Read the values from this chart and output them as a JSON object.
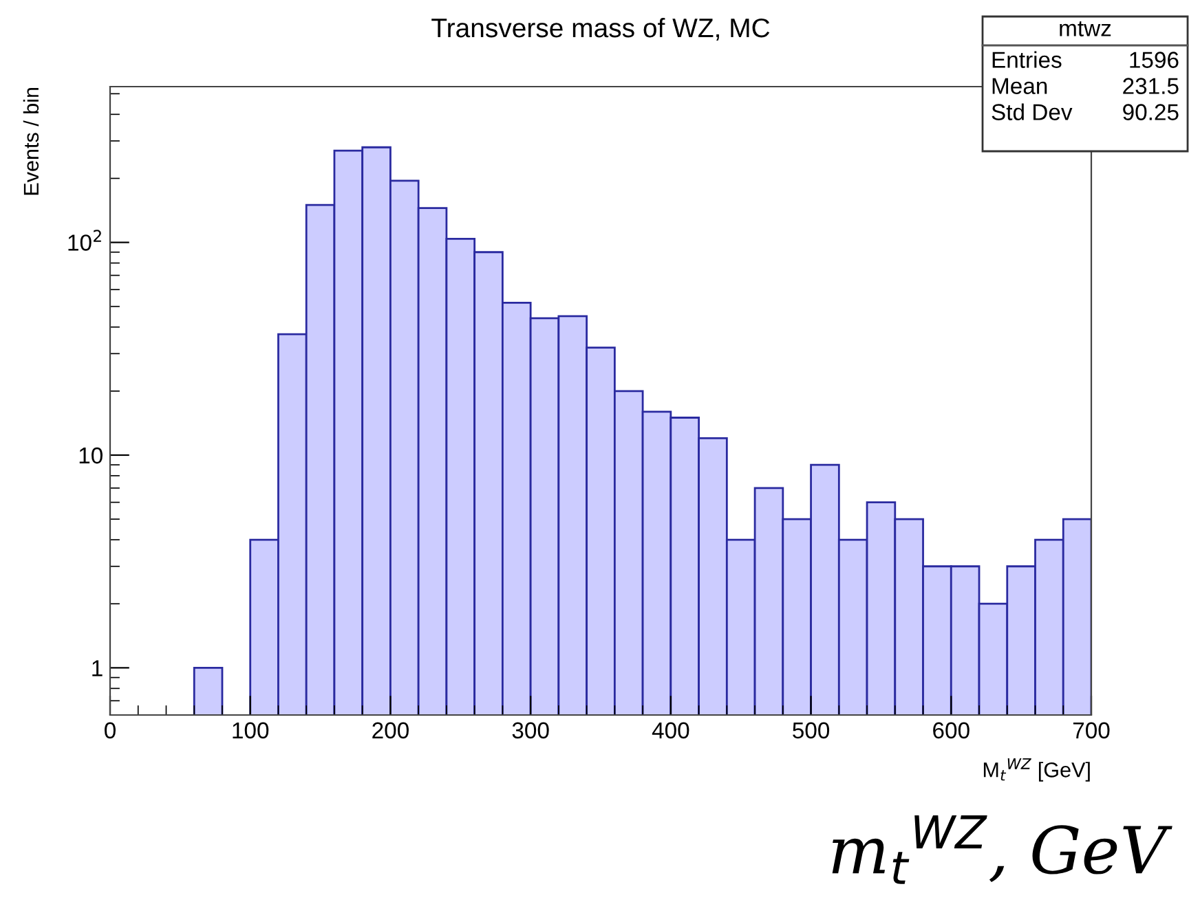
{
  "chart_data": {
    "type": "histogram",
    "title": "Transverse mass of WZ, MC",
    "xlabel": "M$_{t}$$^{WZ}$ [GeV]",
    "ylabel": "Events / bin",
    "bins": [
      0,
      20,
      40,
      60,
      80,
      100,
      120,
      140,
      160,
      180,
      200,
      220,
      240,
      260,
      280,
      300,
      320,
      340,
      360,
      380,
      400,
      420,
      440,
      460,
      480,
      500,
      520,
      540,
      560,
      580,
      600,
      620,
      640,
      660,
      680,
      700
    ],
    "values": [
      null,
      null,
      null,
      1,
      null,
      4,
      37,
      150,
      270,
      280,
      195,
      145,
      104,
      90,
      52,
      44,
      45,
      32,
      20,
      16,
      15,
      12,
      4,
      7,
      5,
      9,
      4,
      6,
      5,
      3,
      3,
      2,
      3,
      4,
      5
    ],
    "color": "#ccccff",
    "log": "y",
    "xlim": [
      0,
      700
    ],
    "xticks": [
      0,
      100,
      200,
      300,
      400,
      500,
      600,
      700
    ],
    "ylim": [
      0.6,
      540
    ],
    "yticks": [
      1,
      10,
      {
        "value": 100,
        "label": "10$^{2}$"
      }
    ],
    "grid": false,
    "legend": false,
    "annotations": [
      "mtwz",
      "Entries",
      "1596",
      "Mean",
      "231.5",
      "Std Dev",
      "90.25",
      "m$_{t}$$^{WZ}$, GeV"
    ]
  }
}
